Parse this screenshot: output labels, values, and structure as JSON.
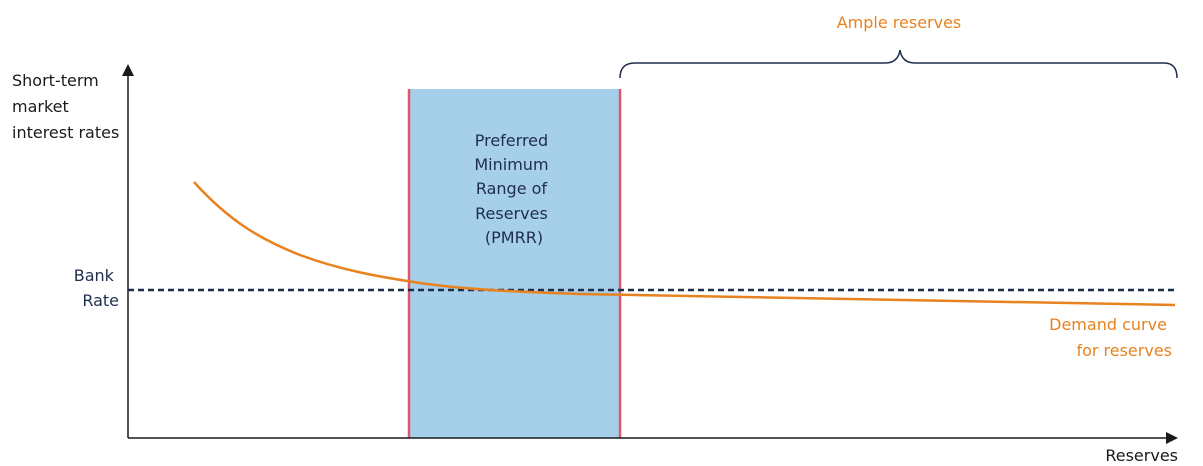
{
  "y_axis_label": [
    "Short-term",
    "market",
    "interest rates"
  ],
  "x_axis_label": "Reserves",
  "bank_rate_label": [
    "Bank",
    "Rate"
  ],
  "pmrr_label": [
    "Preferred",
    "Minimum",
    "Range of",
    "Reserves",
    "(PMRR)"
  ],
  "ample_label": "Ample reserves",
  "curve_label": [
    "Demand curve",
    "for reserves"
  ],
  "colors": {
    "axis": "#1a1a1a",
    "bank_rate_line": "#1f2d4d",
    "pmrr_fill": "#a6d0ea",
    "pmrr_border": "#e0566f",
    "curve": "#e8821e",
    "brace": "#1f2d4d",
    "text_navy": "#1f2d4d",
    "text_orange": "#e8821e"
  }
}
